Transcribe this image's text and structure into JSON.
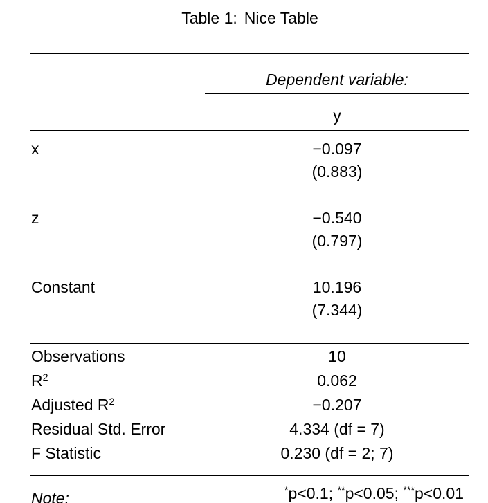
{
  "caption": {
    "label": "Table 1:",
    "text": "Nice Table"
  },
  "table": {
    "header": {
      "dependent_variable_label": "Dependent variable:",
      "dependent_variable_name": "y"
    },
    "coefficients": [
      {
        "label": "x",
        "estimate": "−0.097",
        "std_error": "(0.883)"
      },
      {
        "label": "z",
        "estimate": "−0.540",
        "std_error": "(0.797)"
      },
      {
        "label": "Constant",
        "estimate": "10.196",
        "std_error": "(7.344)"
      }
    ],
    "statistics": [
      {
        "label": "Observations",
        "label_sup": "",
        "value": "10"
      },
      {
        "label": "R",
        "label_sup": "2",
        "value": "0.062"
      },
      {
        "label": "Adjusted R",
        "label_sup": "2",
        "value": "−0.207"
      },
      {
        "label": "Residual Std. Error",
        "label_sup": "",
        "value": "4.334 (df = 7)"
      },
      {
        "label": "F Statistic",
        "label_sup": "",
        "value": "0.230 (df = 2; 7)"
      }
    ],
    "note": {
      "label": "Note:",
      "significance": [
        {
          "stars": "*",
          "text": "p<0.1; "
        },
        {
          "stars": "**",
          "text": "p<0.05; "
        },
        {
          "stars": "***",
          "text": "p<0.01"
        }
      ]
    }
  }
}
